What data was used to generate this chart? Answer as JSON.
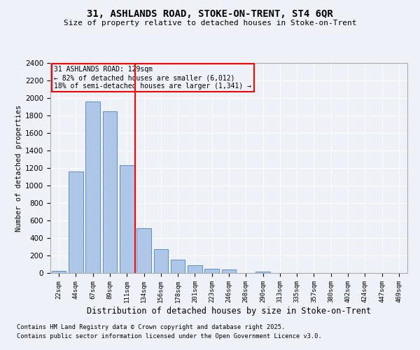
{
  "title_line1": "31, ASHLANDS ROAD, STOKE-ON-TRENT, ST4 6QR",
  "title_line2": "Size of property relative to detached houses in Stoke-on-Trent",
  "xlabel": "Distribution of detached houses by size in Stoke-on-Trent",
  "ylabel": "Number of detached properties",
  "categories": [
    "22sqm",
    "44sqm",
    "67sqm",
    "89sqm",
    "111sqm",
    "134sqm",
    "156sqm",
    "178sqm",
    "201sqm",
    "223sqm",
    "246sqm",
    "268sqm",
    "290sqm",
    "313sqm",
    "335sqm",
    "357sqm",
    "380sqm",
    "402sqm",
    "424sqm",
    "447sqm",
    "469sqm"
  ],
  "values": [
    25,
    1160,
    1960,
    1850,
    1230,
    510,
    270,
    155,
    90,
    50,
    40,
    0,
    20,
    0,
    0,
    0,
    0,
    0,
    0,
    0,
    0
  ],
  "bar_color": "#aec6e8",
  "bar_edge_color": "#5a8fc2",
  "vline_pos": 4.5,
  "vline_color": "red",
  "annotation_text": "31 ASHLANDS ROAD: 129sqm\n← 82% of detached houses are smaller (6,012)\n18% of semi-detached houses are larger (1,341) →",
  "annotation_box_color": "red",
  "ylim": [
    0,
    2400
  ],
  "yticks": [
    0,
    200,
    400,
    600,
    800,
    1000,
    1200,
    1400,
    1600,
    1800,
    2000,
    2200,
    2400
  ],
  "bg_color": "#eef2f8",
  "grid_color": "#ffffff",
  "footer_line1": "Contains HM Land Registry data © Crown copyright and database right 2025.",
  "footer_line2": "Contains public sector information licensed under the Open Government Licence v3.0."
}
